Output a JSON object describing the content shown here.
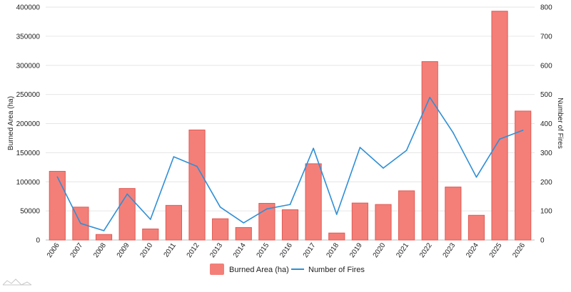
{
  "chart_data": {
    "type": "bar",
    "title": "",
    "categories": [
      "2006",
      "2007",
      "2008",
      "2009",
      "2010",
      "2011",
      "2012",
      "2013",
      "2014",
      "2015",
      "2016",
      "2017",
      "2018",
      "2019",
      "2020",
      "2021",
      "2022",
      "2023",
      "2024",
      "2025",
      "2026"
    ],
    "series": [
      {
        "name": "Burned Area (ha)",
        "type": "bar",
        "axis": "left",
        "color": "#f47f79",
        "values": [
          118000,
          56500,
          9500,
          88500,
          19000,
          59500,
          189000,
          36500,
          21500,
          63000,
          52000,
          131000,
          12000,
          63500,
          61000,
          84500,
          306500,
          91000,
          42500,
          393000,
          221500
        ]
      },
      {
        "name": "Number of Fires",
        "type": "line",
        "axis": "right",
        "color": "#2e8fd6",
        "values": [
          217,
          57,
          32,
          158,
          71,
          286,
          253,
          113,
          59,
          107,
          122,
          315,
          88,
          318,
          247,
          308,
          490,
          369,
          216,
          347,
          377
        ]
      }
    ],
    "ylabel": "Burned Area (ha)",
    "ylabel_right": "Number of Fires",
    "ylim": [
      0,
      400000
    ],
    "yticks": [
      "0",
      "50000",
      "100000",
      "150000",
      "200000",
      "250000",
      "300000",
      "350000",
      "400000"
    ],
    "ylim_right": [
      0,
      800
    ],
    "yticks_right": [
      "0",
      "100",
      "200",
      "300",
      "400",
      "500",
      "600",
      "700",
      "800"
    ],
    "grid": true,
    "legend_position": "bottom-center"
  }
}
